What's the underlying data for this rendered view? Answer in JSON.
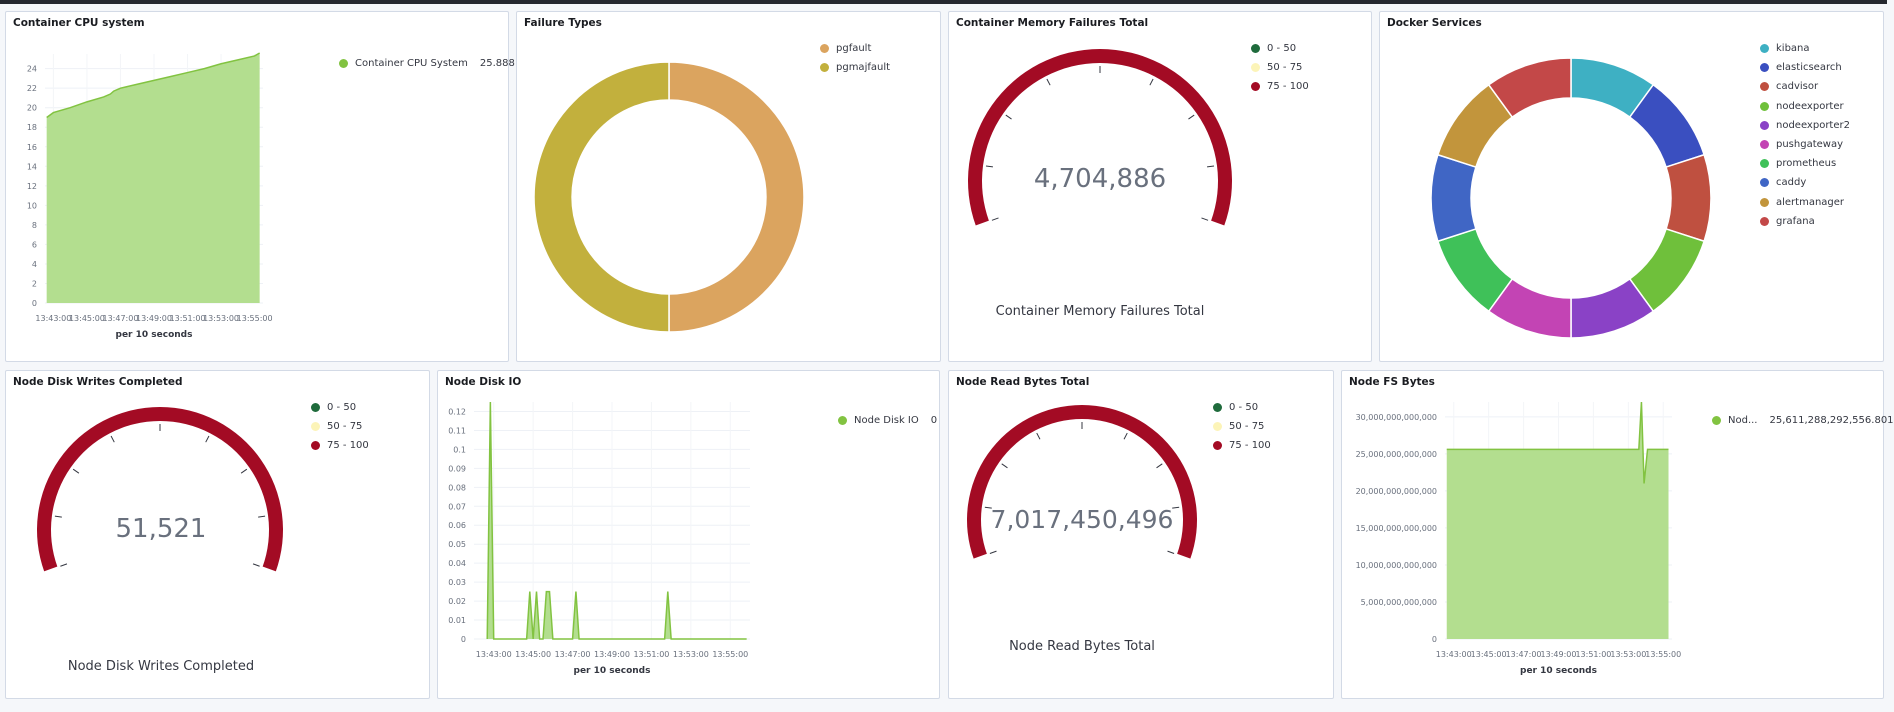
{
  "colors": {
    "series_green": "#82c341",
    "area_green": "#b3de8f",
    "gauge_red": "#a30b24",
    "gauge_low": "#1f6b3c",
    "gauge_mid": "#fcf4b8",
    "pgfault": "#dba45f",
    "pgmajfault": "#c2b03d"
  },
  "panels": {
    "cpu": {
      "title": "Container CPU system",
      "legend": {
        "label": "Container CPU System",
        "value": "25.888"
      },
      "xlabel": "per 10 seconds"
    },
    "failures": {
      "title": "Failure Types",
      "legend": [
        {
          "label": "pgfault",
          "color": "#dba45f"
        },
        {
          "label": "pgmajfault",
          "color": "#c2b03d"
        }
      ]
    },
    "memory": {
      "title": "Container Memory Failures Total",
      "value": "4,704,886",
      "label": "Container Memory Failures Total",
      "ranges": [
        {
          "label": "0 - 50",
          "color": "#1f6b3c"
        },
        {
          "label": "50 - 75",
          "color": "#fcf4b8"
        },
        {
          "label": "75 - 100",
          "color": "#a30b24"
        }
      ]
    },
    "docker": {
      "title": "Docker Services",
      "legend": [
        {
          "label": "kibana",
          "color": "#3eb0c3"
        },
        {
          "label": "elasticsearch",
          "color": "#3a4fc0"
        },
        {
          "label": "cadvisor",
          "color": "#bf5040"
        },
        {
          "label": "nodeexporter",
          "color": "#6fc03b"
        },
        {
          "label": "nodeexporter2",
          "color": "#8a42c6"
        },
        {
          "label": "pushgateway",
          "color": "#c344b4"
        },
        {
          "label": "prometheus",
          "color": "#3fc159"
        },
        {
          "label": "caddy",
          "color": "#4066c5"
        },
        {
          "label": "alertmanager",
          "color": "#c2953c"
        },
        {
          "label": "grafana",
          "color": "#c34848"
        }
      ]
    },
    "writes": {
      "title": "Node Disk Writes Completed",
      "value": "51,521",
      "label": "Node Disk Writes Completed",
      "ranges": [
        {
          "label": "0 - 50",
          "color": "#1f6b3c"
        },
        {
          "label": "50 - 75",
          "color": "#fcf4b8"
        },
        {
          "label": "75 - 100",
          "color": "#a30b24"
        }
      ]
    },
    "diskio": {
      "title": "Node Disk IO",
      "legend": {
        "label": "Node Disk IO",
        "value": "0"
      },
      "xlabel": "per 10 seconds"
    },
    "readbytes": {
      "title": "Node Read Bytes Total",
      "value": "7,017,450,496",
      "label": "Node Read Bytes Total",
      "ranges": [
        {
          "label": "0 - 50",
          "color": "#1f6b3c"
        },
        {
          "label": "50 - 75",
          "color": "#fcf4b8"
        },
        {
          "label": "75 - 100",
          "color": "#a30b24"
        }
      ]
    },
    "fsbytes": {
      "title": "Node FS Bytes",
      "legend": {
        "label": "Nod...",
        "value": "25,611,288,292,556.801"
      },
      "xlabel": "per 10 seconds"
    }
  },
  "chart_data": [
    {
      "id": "cpu",
      "type": "area",
      "title": "Container CPU system",
      "xlabel": "per 10 seconds",
      "ylabel": "",
      "ylim": [
        0,
        25.5
      ],
      "yticks": [
        0,
        2,
        4,
        6,
        8,
        10,
        12,
        14,
        16,
        18,
        20,
        22,
        24
      ],
      "xticks": [
        "13:43:00",
        "13:45:00",
        "13:47:00",
        "13:49:00",
        "13:51:00",
        "13:53:00",
        "13:55:00"
      ],
      "xrange_minutes": [
        42.5,
        55.5
      ],
      "grid": true,
      "legend_position": "right",
      "series": [
        {
          "name": "Container CPU System",
          "x_minutes": [
            42.6,
            43.0,
            44.0,
            45.0,
            46.0,
            46.4,
            46.6,
            47.0,
            48.0,
            49.0,
            50.0,
            51.0,
            52.0,
            53.0,
            54.0,
            55.0,
            55.3
          ],
          "values": [
            19.0,
            19.5,
            20.0,
            20.6,
            21.1,
            21.4,
            21.7,
            22.0,
            22.4,
            22.8,
            23.2,
            23.6,
            24.0,
            24.5,
            24.9,
            25.3,
            25.6
          ]
        }
      ]
    },
    {
      "id": "failures",
      "type": "pie",
      "title": "Failure Types",
      "categories": [
        "pgfault",
        "pgmajfault"
      ],
      "values": [
        50,
        50
      ],
      "legend_position": "top-right"
    },
    {
      "id": "docker",
      "type": "pie",
      "title": "Docker Services",
      "categories": [
        "kibana",
        "elasticsearch",
        "cadvisor",
        "nodeexporter",
        "nodeexporter2",
        "pushgateway",
        "prometheus",
        "caddy",
        "alertmanager",
        "grafana"
      ],
      "values": [
        10,
        10,
        10,
        10,
        10,
        10,
        10,
        10,
        10,
        10
      ],
      "legend_position": "top-right"
    },
    {
      "id": "diskio",
      "type": "area",
      "title": "Node Disk IO",
      "xlabel": "per 10 seconds",
      "ylabel": "",
      "ylim": [
        0,
        0.125
      ],
      "yticks": [
        0,
        0.01,
        0.02,
        0.03,
        0.04,
        0.05,
        0.06,
        0.07,
        0.08,
        0.09,
        0.1,
        0.11,
        0.12
      ],
      "xticks": [
        "13:43:00",
        "13:45:00",
        "13:47:00",
        "13:49:00",
        "13:51:00",
        "13:53:00",
        "13:55:00"
      ],
      "xrange_minutes": [
        42.0,
        56.0
      ],
      "grid": true,
      "legend_position": "right",
      "series": [
        {
          "name": "Node Disk IO",
          "x_minutes": [
            42.67,
            42.83,
            43.0,
            43.17,
            44.67,
            44.83,
            45.0,
            45.17,
            45.33,
            45.5,
            45.67,
            45.83,
            46.0,
            46.17,
            46.33,
            47.0,
            47.17,
            47.33,
            51.67,
            51.83,
            52.0,
            55.83
          ],
          "values": [
            0,
            0.125,
            0,
            0,
            0,
            0.025,
            0,
            0.025,
            0,
            0,
            0.025,
            0.025,
            0,
            0,
            0,
            0,
            0.025,
            0,
            0,
            0.025,
            0,
            0
          ]
        }
      ]
    },
    {
      "id": "fsbytes",
      "type": "area",
      "title": "Node FS Bytes",
      "xlabel": "per 10 seconds",
      "ylabel": "",
      "ylim": [
        0,
        32000000000000
      ],
      "yticks": [
        0,
        5000000000000,
        10000000000000,
        15000000000000,
        20000000000000,
        25000000000000,
        30000000000000
      ],
      "ytick_labels": [
        "0",
        "5,000,000,000,000",
        "10,000,000,000,000",
        "15,000,000,000,000",
        "20,000,000,000,000",
        "25,000,000,000,000",
        "30,000,000,000,000"
      ],
      "xticks": [
        "13:43:00",
        "13:45:00",
        "13:47:00",
        "13:49:00",
        "13:51:00",
        "13:53:00",
        "13:55:00"
      ],
      "xrange_minutes": [
        42.5,
        55.5
      ],
      "grid": true,
      "legend_position": "right",
      "series": [
        {
          "name": "Nod...",
          "x_minutes": [
            42.6,
            53.6,
            53.75,
            53.9,
            54.1,
            55.3
          ],
          "values": [
            25600000000000,
            25600000000000,
            32000000000000,
            21000000000000,
            25600000000000,
            25600000000000
          ]
        }
      ]
    }
  ]
}
